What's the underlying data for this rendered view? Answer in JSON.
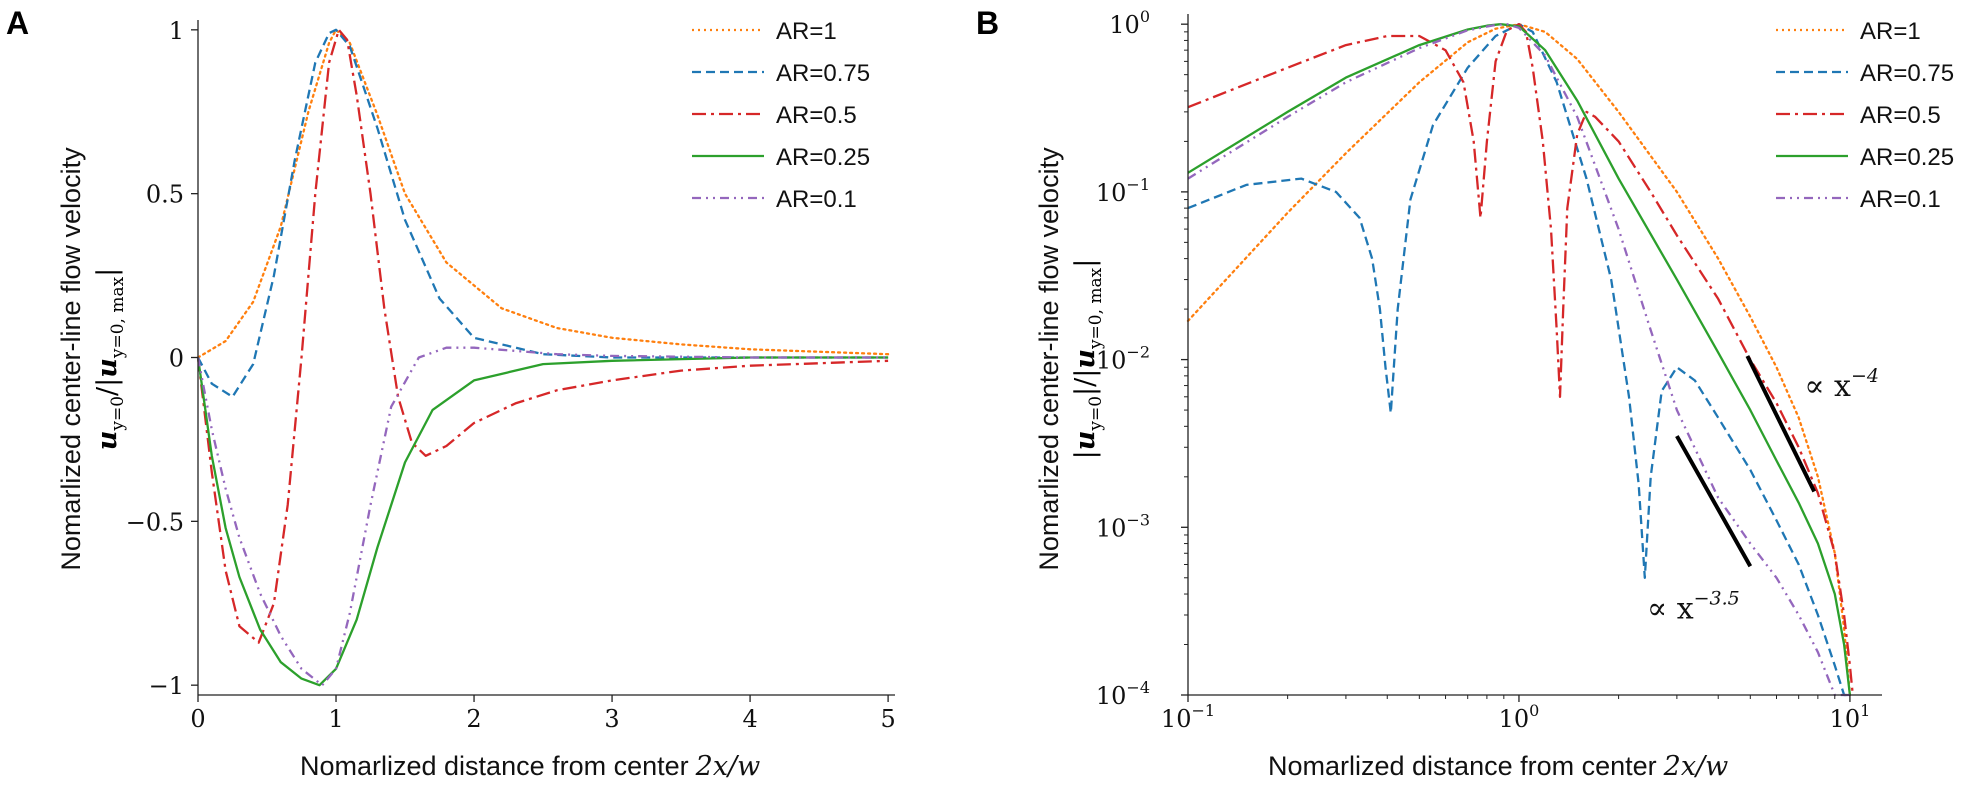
{
  "figure": {
    "panel_labels": [
      "A",
      "B"
    ]
  },
  "series_styles": [
    {
      "name": "AR=1",
      "color": "#ff7f0e",
      "dash": "2 4"
    },
    {
      "name": "AR=0.75",
      "color": "#1f77b4",
      "dash": "9 5"
    },
    {
      "name": "AR=0.5",
      "color": "#d62728",
      "dash": "14 5 3 5"
    },
    {
      "name": "AR=0.25",
      "color": "#2ca02c",
      "dash": ""
    },
    {
      "name": "AR=0.1",
      "color": "#9467bd",
      "dash": "9 5 2 5 2 5"
    }
  ],
  "chart_data": [
    {
      "panel": "A",
      "type": "line",
      "xlabel": "Nomarlized distance from center",
      "xlabel_math": "2x/w",
      "ylabel_top": "Nomarlized center-line flow velocity",
      "ylabel_bottom": "u_{y=0} / |u_{y=0, max}|",
      "xlim": [
        0,
        5.05
      ],
      "ylim": [
        -1.03,
        1.03
      ],
      "xticks": [
        0,
        1,
        2,
        3,
        4,
        5
      ],
      "xtick_labels": [
        "0",
        "1",
        "2",
        "3",
        "4",
        "5"
      ],
      "yticks": [
        1,
        0.5,
        0,
        -0.5,
        -1
      ],
      "ytick_labels": [
        "1",
        "0.5",
        "0",
        "−0.5",
        "−1"
      ],
      "legend": [
        "AR=1",
        "AR=0.75",
        "AR=0.5",
        "AR=0.25",
        "AR=0.1"
      ],
      "legend_position": "top-right",
      "series": [
        {
          "name": "AR=1",
          "x": [
            0,
            0.2,
            0.4,
            0.6,
            0.8,
            0.95,
            1.0,
            1.1,
            1.3,
            1.5,
            1.8,
            2.2,
            2.6,
            3.0,
            3.5,
            4.0,
            5.0
          ],
          "y": [
            0,
            0.05,
            0.17,
            0.4,
            0.75,
            0.96,
            1.0,
            0.96,
            0.74,
            0.5,
            0.29,
            0.15,
            0.09,
            0.06,
            0.04,
            0.025,
            0.01
          ]
        },
        {
          "name": "AR=0.75",
          "x": [
            0,
            0.1,
            0.25,
            0.4,
            0.55,
            0.7,
            0.85,
            0.95,
            1.0,
            1.1,
            1.3,
            1.5,
            1.75,
            2.0,
            2.5,
            3.0,
            4.0,
            5.0
          ],
          "y": [
            0,
            -0.08,
            -0.12,
            -0.02,
            0.25,
            0.6,
            0.9,
            0.99,
            1.0,
            0.95,
            0.7,
            0.42,
            0.18,
            0.06,
            0.01,
            0.0,
            0.0,
            0.0
          ]
        },
        {
          "name": "AR=0.5",
          "x": [
            0,
            0.1,
            0.2,
            0.3,
            0.44,
            0.55,
            0.65,
            0.75,
            0.85,
            0.95,
            1.02,
            1.08,
            1.15,
            1.25,
            1.35,
            1.45,
            1.55,
            1.65,
            1.8,
            2.0,
            2.3,
            2.6,
            3.0,
            3.5,
            4.0,
            5.0
          ],
          "y": [
            0,
            -0.35,
            -0.65,
            -0.82,
            -0.87,
            -0.75,
            -0.45,
            0.0,
            0.5,
            0.9,
            1.0,
            0.97,
            0.8,
            0.5,
            0.15,
            -0.12,
            -0.26,
            -0.3,
            -0.27,
            -0.2,
            -0.14,
            -0.1,
            -0.07,
            -0.04,
            -0.025,
            -0.01
          ]
        },
        {
          "name": "AR=0.25",
          "x": [
            0,
            0.1,
            0.2,
            0.3,
            0.45,
            0.6,
            0.75,
            0.88,
            1.0,
            1.15,
            1.3,
            1.5,
            1.7,
            2.0,
            2.5,
            3.0,
            4.0,
            5.0
          ],
          "y": [
            0,
            -0.3,
            -0.52,
            -0.67,
            -0.83,
            -0.93,
            -0.98,
            -1.0,
            -0.95,
            -0.8,
            -0.58,
            -0.32,
            -0.16,
            -0.07,
            -0.02,
            -0.01,
            0.0,
            0.0
          ]
        },
        {
          "name": "AR=0.1",
          "x": [
            0,
            0.1,
            0.2,
            0.3,
            0.45,
            0.6,
            0.75,
            0.9,
            1.0,
            1.1,
            1.25,
            1.4,
            1.6,
            1.8,
            2.0,
            2.3,
            2.6,
            3.0,
            4.0,
            5.0
          ],
          "y": [
            0,
            -0.22,
            -0.4,
            -0.55,
            -0.72,
            -0.85,
            -0.95,
            -1.0,
            -0.95,
            -0.78,
            -0.45,
            -0.15,
            0.0,
            0.03,
            0.03,
            0.02,
            0.01,
            0.005,
            0.0,
            0.0
          ]
        }
      ]
    },
    {
      "panel": "B",
      "type": "line",
      "xscale": "log",
      "yscale": "log",
      "xlabel": "Nomarlized distance from center",
      "xlabel_math": "2x/w",
      "ylabel_top": "Nomarlized center-line flow velocity",
      "ylabel_bottom": "|u_{y=0}| / |u_{y=0, max}|",
      "xlim": [
        0.1,
        12.5
      ],
      "ylim": [
        0.0001,
        1.15
      ],
      "xticks": [
        0.1,
        1,
        10
      ],
      "xtick_labels": [
        [
          "10",
          "−1"
        ],
        [
          "10",
          "0"
        ],
        [
          "10",
          "1"
        ]
      ],
      "yticks": [
        1,
        0.1,
        0.01,
        0.001,
        0.0001
      ],
      "ytick_labels": [
        [
          "10",
          "0"
        ],
        [
          "10",
          "−1"
        ],
        [
          "10",
          "−2"
        ],
        [
          "10",
          "−3"
        ],
        [
          "10",
          "−4"
        ]
      ],
      "legend": [
        "AR=1",
        "AR=0.75",
        "AR=0.5",
        "AR=0.25",
        "AR=0.1"
      ],
      "legend_position": "top-right",
      "annotations": [
        {
          "text_prefix": "∝ x",
          "exponent": "−4",
          "slope": -4,
          "x_range": [
            4.9,
            7.8
          ],
          "y_start": 0.0105
        },
        {
          "text_prefix": "∝ x",
          "exponent": "−3.5",
          "slope": -3.5,
          "x_range": [
            3.0,
            5.0
          ],
          "y_start": 0.0035
        }
      ],
      "series": [
        {
          "name": "AR=1",
          "x": [
            0.1,
            0.2,
            0.3,
            0.5,
            0.7,
            0.85,
            1.0,
            1.2,
            1.5,
            2.0,
            3.0,
            4.0,
            5.0,
            6.0,
            7.0,
            8.0,
            9.0,
            9.6,
            10.0
          ],
          "y": [
            0.017,
            0.075,
            0.17,
            0.45,
            0.78,
            0.94,
            1.0,
            0.9,
            0.62,
            0.3,
            0.1,
            0.04,
            0.018,
            0.009,
            0.0045,
            0.002,
            0.0007,
            0.00025,
            0.0001
          ]
        },
        {
          "name": "AR=0.75",
          "x": [
            0.1,
            0.15,
            0.22,
            0.28,
            0.33,
            0.36,
            0.38,
            0.395,
            0.41,
            0.43,
            0.47,
            0.55,
            0.7,
            0.85,
            1.0,
            1.1,
            1.3,
            1.6,
            1.9,
            2.15,
            2.3,
            2.4,
            2.5,
            2.7,
            3.0,
            3.4,
            4.0,
            5.0,
            6.0,
            7.0,
            8.0,
            9.0,
            9.6,
            10.0
          ],
          "y": [
            0.08,
            0.11,
            0.12,
            0.1,
            0.07,
            0.04,
            0.02,
            0.009,
            0.0048,
            0.02,
            0.09,
            0.25,
            0.55,
            0.85,
            1.0,
            0.9,
            0.45,
            0.12,
            0.03,
            0.006,
            0.0018,
            0.0005,
            0.002,
            0.0065,
            0.009,
            0.0075,
            0.0045,
            0.0022,
            0.0011,
            0.0006,
            0.0003,
            0.00015,
            8e-05,
            0.0001
          ]
        },
        {
          "name": "AR=0.5",
          "x": [
            0.1,
            0.2,
            0.3,
            0.4,
            0.5,
            0.6,
            0.68,
            0.73,
            0.765,
            0.8,
            0.85,
            0.92,
            1.0,
            1.05,
            1.1,
            1.18,
            1.25,
            1.3,
            1.33,
            1.36,
            1.4,
            1.5,
            1.6,
            1.7,
            2.0,
            2.5,
            3.0,
            4.0,
            5.0,
            6.0,
            7.0,
            8.0,
            9.0,
            9.6,
            10.0,
            10.2
          ],
          "y": [
            0.32,
            0.55,
            0.75,
            0.85,
            0.85,
            0.7,
            0.45,
            0.2,
            0.07,
            0.2,
            0.6,
            0.92,
            1.0,
            0.9,
            0.55,
            0.2,
            0.06,
            0.015,
            0.006,
            0.02,
            0.08,
            0.22,
            0.3,
            0.28,
            0.2,
            0.1,
            0.055,
            0.023,
            0.01,
            0.0055,
            0.003,
            0.0016,
            0.0007,
            0.0003,
            0.00015,
            0.0001
          ]
        },
        {
          "name": "AR=0.25",
          "x": [
            0.1,
            0.2,
            0.3,
            0.5,
            0.7,
            0.8,
            0.88,
            1.0,
            1.2,
            1.5,
            2.0,
            3.0,
            4.0,
            5.0,
            6.0,
            7.0,
            8.0,
            9.0,
            9.6,
            10.0
          ],
          "y": [
            0.13,
            0.3,
            0.48,
            0.75,
            0.93,
            0.98,
            1.0,
            0.97,
            0.7,
            0.35,
            0.12,
            0.03,
            0.011,
            0.005,
            0.0025,
            0.0014,
            0.0008,
            0.0004,
            0.0002,
            0.0001
          ]
        },
        {
          "name": "AR=0.1",
          "x": [
            0.1,
            0.2,
            0.3,
            0.5,
            0.7,
            0.85,
            0.92,
            1.0,
            1.2,
            1.5,
            2.0,
            2.5,
            3.0,
            4.0,
            5.0,
            6.0,
            7.0,
            8.0,
            9.0,
            9.6,
            10.0
          ],
          "y": [
            0.12,
            0.28,
            0.45,
            0.72,
            0.92,
            0.99,
            1.0,
            0.95,
            0.65,
            0.28,
            0.06,
            0.015,
            0.005,
            0.0015,
            0.0008,
            0.0005,
            0.0003,
            0.00018,
            0.0001,
            7e-05,
            0.0001
          ]
        }
      ]
    }
  ]
}
